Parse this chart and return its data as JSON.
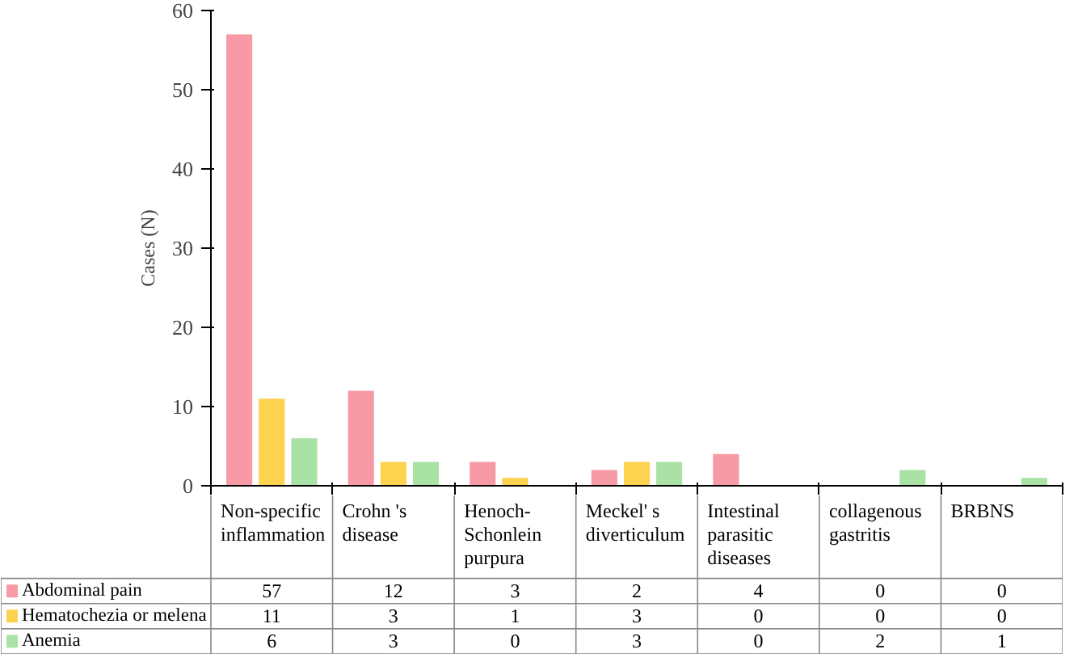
{
  "chart_data": {
    "type": "bar",
    "ylabel": "Cases (N)",
    "categories": [
      "Non-specific inflammation",
      "Crohn 's disease",
      "Henoch-Schonlein purpura",
      "Meckel' s diverticulum",
      "Intestinal parasitic diseases",
      "collagenous gastritis",
      "BRBNS"
    ],
    "series": [
      {
        "name": "Abdominal pain",
        "color": "#f79aa5",
        "values": [
          57,
          12,
          3,
          2,
          4,
          0,
          0
        ]
      },
      {
        "name": "Hematochezia or melena",
        "color": "#fdd24f",
        "values": [
          11,
          3,
          1,
          3,
          0,
          0,
          0
        ]
      },
      {
        "name": "Anemia",
        "color": "#a9e2a4",
        "values": [
          6,
          3,
          0,
          3,
          0,
          2,
          1
        ]
      }
    ],
    "ylim": [
      0,
      60
    ],
    "yticks": [
      0,
      10,
      20,
      30,
      40,
      50,
      60
    ],
    "grid": false,
    "legend": "bottom left",
    "data_labels": true
  }
}
